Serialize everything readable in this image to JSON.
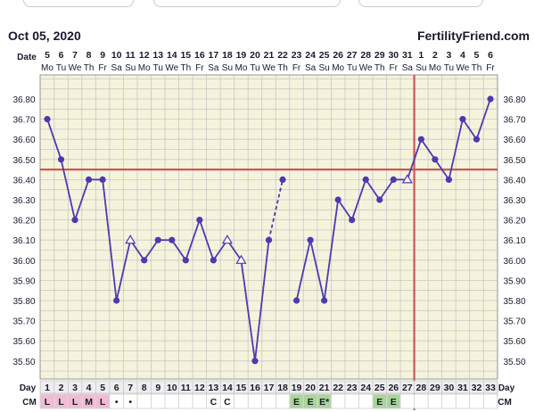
{
  "header": {
    "date": "Oct 05, 2020",
    "brand": "FertilityFriend.com"
  },
  "row_labels": {
    "date": "Date",
    "day": "Day",
    "cm": "CM"
  },
  "colors": {
    "background": "#f6f3dc",
    "grid": "#c8c8c8",
    "line": "#4b3bb0",
    "coverline": "#c55a5a",
    "ovulation_line": "#c55a5a",
    "cm_pink": "#f0bcd4",
    "cm_green": "#a8d59a"
  },
  "chart_data": {
    "type": "line",
    "title": "",
    "x_label": "Day",
    "cycle_days": [
      1,
      2,
      3,
      4,
      5,
      6,
      7,
      8,
      9,
      10,
      11,
      12,
      13,
      14,
      15,
      16,
      17,
      18,
      19,
      20,
      21,
      22,
      23,
      24,
      25,
      26,
      27,
      28,
      29,
      30,
      31,
      32,
      33
    ],
    "dates": [
      "5",
      "6",
      "7",
      "8",
      "9",
      "10",
      "11",
      "12",
      "13",
      "14",
      "15",
      "16",
      "17",
      "18",
      "19",
      "20",
      "21",
      "22",
      "23",
      "24",
      "25",
      "26",
      "27",
      "28",
      "29",
      "30",
      "31",
      "1",
      "2",
      "3",
      "4",
      "5",
      "6"
    ],
    "weekdays": [
      "Mo",
      "Tu",
      "We",
      "Th",
      "Fr",
      "Sa",
      "Su",
      "Mo",
      "Tu",
      "We",
      "Th",
      "Fr",
      "Sa",
      "Su",
      "Mo",
      "Tu",
      "We",
      "Th",
      "Fr",
      "Sa",
      "Su",
      "Mo",
      "Tu",
      "We",
      "Th",
      "Fr",
      "Sa",
      "Su",
      "Mo",
      "Tu",
      "We",
      "Th",
      "Fr"
    ],
    "y_ticks": [
      "36.80",
      "36.70",
      "36.60",
      "36.50",
      "36.40",
      "36.30",
      "36.20",
      "36.10",
      "36.00",
      "35.90",
      "35.80",
      "35.70",
      "35.60",
      "35.50"
    ],
    "ylim": [
      35.45,
      36.85
    ],
    "temperatures": [
      36.7,
      36.5,
      36.2,
      36.4,
      36.4,
      35.8,
      36.1,
      36.0,
      36.1,
      36.1,
      36.0,
      36.2,
      36.0,
      36.1,
      36.0,
      35.5,
      36.1,
      36.4,
      35.8,
      36.1,
      35.8,
      36.3,
      36.2,
      36.4,
      36.3,
      36.4,
      36.4,
      36.6,
      36.5,
      36.4,
      36.7,
      36.6,
      36.8
    ],
    "marker": [
      "dot",
      "dot",
      "dot",
      "dot",
      "dot",
      "dot",
      "open",
      "dot",
      "dot",
      "dot",
      "dot",
      "dot",
      "dot",
      "open",
      "open",
      "dot",
      "dot",
      "dot",
      "dot",
      "dot",
      "dot",
      "dot",
      "dot",
      "dot",
      "dot",
      "dot",
      "open",
      "dot",
      "dot",
      "dot",
      "dot",
      "dot",
      "dot"
    ],
    "connected_to_next": [
      true,
      true,
      true,
      true,
      true,
      true,
      true,
      true,
      true,
      true,
      true,
      true,
      true,
      true,
      true,
      true,
      "dashed",
      false,
      true,
      true,
      true,
      true,
      true,
      true,
      true,
      true,
      true,
      true,
      true,
      true,
      true,
      true,
      false
    ],
    "coverline": 36.45,
    "ovulation_day": 27,
    "cervical_mucus": [
      "L",
      "L",
      "L",
      "M",
      "L",
      "•",
      "•",
      "",
      "",
      "",
      "",
      "",
      "C",
      "C",
      "",
      "",
      "",
      "",
      "E",
      "E",
      "E*",
      "",
      "",
      "",
      "E",
      "E",
      "",
      "",
      "",
      "",
      "",
      "",
      ""
    ],
    "cm_colors": [
      "pink",
      "pink",
      "pink",
      "pink",
      "pink",
      "",
      "",
      "",
      "",
      "",
      "",
      "",
      "",
      "",
      "",
      "",
      "",
      "",
      "green",
      "green",
      "green",
      "",
      "",
      "",
      "green",
      "green",
      "",
      "",
      "",
      "",
      "",
      "",
      ""
    ]
  }
}
